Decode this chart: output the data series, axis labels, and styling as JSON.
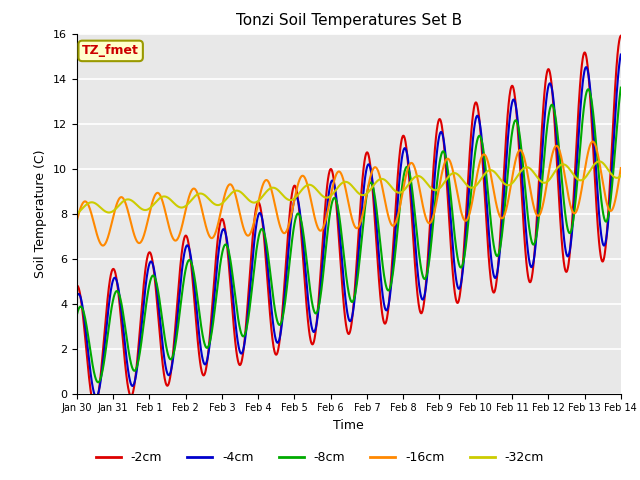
{
  "title": "Tonzi Soil Temperatures Set B",
  "xlabel": "Time",
  "ylabel": "Soil Temperature (C)",
  "ylim": [
    0,
    16
  ],
  "yticks": [
    0,
    2,
    4,
    6,
    8,
    10,
    12,
    14,
    16
  ],
  "legend_label": "TZ_fmet",
  "bg_color": "#e8e8e8",
  "colors": {
    "-2cm": "#dd0000",
    "-4cm": "#0000cc",
    "-8cm": "#00aa00",
    "-16cm": "#ff8800",
    "-32cm": "#cccc00"
  },
  "line_width": 1.5
}
